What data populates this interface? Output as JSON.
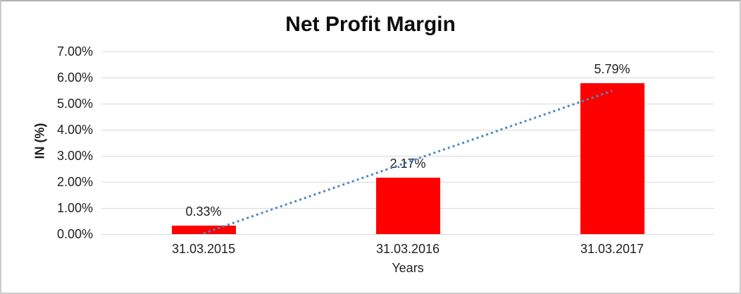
{
  "chart_data": {
    "type": "bar",
    "title": "Net Profit Margin",
    "categories": [
      "31.03.2015",
      "31.03.2016",
      "31.03.2017"
    ],
    "series": [
      {
        "name": "Net Profit Margin",
        "values": [
          0.33,
          2.17,
          5.79
        ]
      }
    ],
    "data_labels": [
      "0.33%",
      "2.17%",
      "5.79%"
    ],
    "xlabel": "Years",
    "ylabel": "IN (%)",
    "ylim": [
      0,
      7
    ],
    "y_tick_values": [
      0,
      1,
      2,
      3,
      4,
      5,
      6,
      7
    ],
    "y_tick_labels": [
      "0.00%",
      "1.00%",
      "2.00%",
      "3.00%",
      "4.00%",
      "5.00%",
      "6.00%",
      "7.00%"
    ],
    "grid": true,
    "legend": "none",
    "bar_color": "#FF0000",
    "gridline_color": "#d9d9d9",
    "trendline": {
      "type": "linear",
      "style": "dotted",
      "color": "#4e87c5",
      "values": [
        0.03,
        2.76,
        5.49
      ]
    }
  }
}
